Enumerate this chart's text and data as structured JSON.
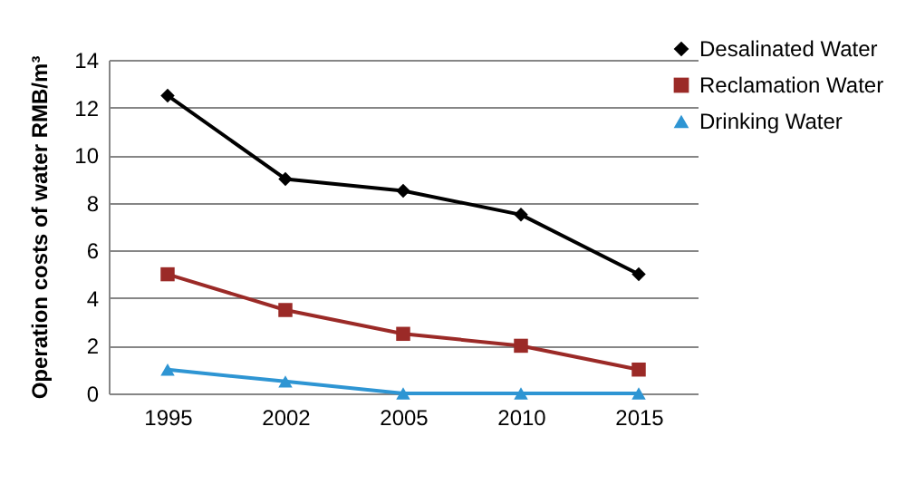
{
  "chart_data": {
    "type": "line",
    "ylabel": "Operation costs of water RMB/m³",
    "categories": [
      "1995",
      "2002",
      "2005",
      "2010",
      "2015"
    ],
    "series": [
      {
        "name": "Desalinated Water",
        "color": "#000000",
        "marker": "diamond",
        "values": [
          12.5,
          9,
          8.5,
          7.5,
          5
        ]
      },
      {
        "name": "Reclamation Water",
        "color": "#9b2a27",
        "marker": "square",
        "values": [
          5,
          3.5,
          2.5,
          2,
          1
        ]
      },
      {
        "name": "Drinking Water",
        "color": "#2e95d3",
        "marker": "triangle",
        "values": [
          1,
          0.5,
          0,
          0,
          0
        ]
      }
    ],
    "ylim": [
      0,
      14
    ],
    "yticks": [
      0,
      2,
      4,
      6,
      8,
      10,
      12,
      14
    ],
    "grid": "y",
    "legend": "top right",
    "line_style": "solid"
  }
}
